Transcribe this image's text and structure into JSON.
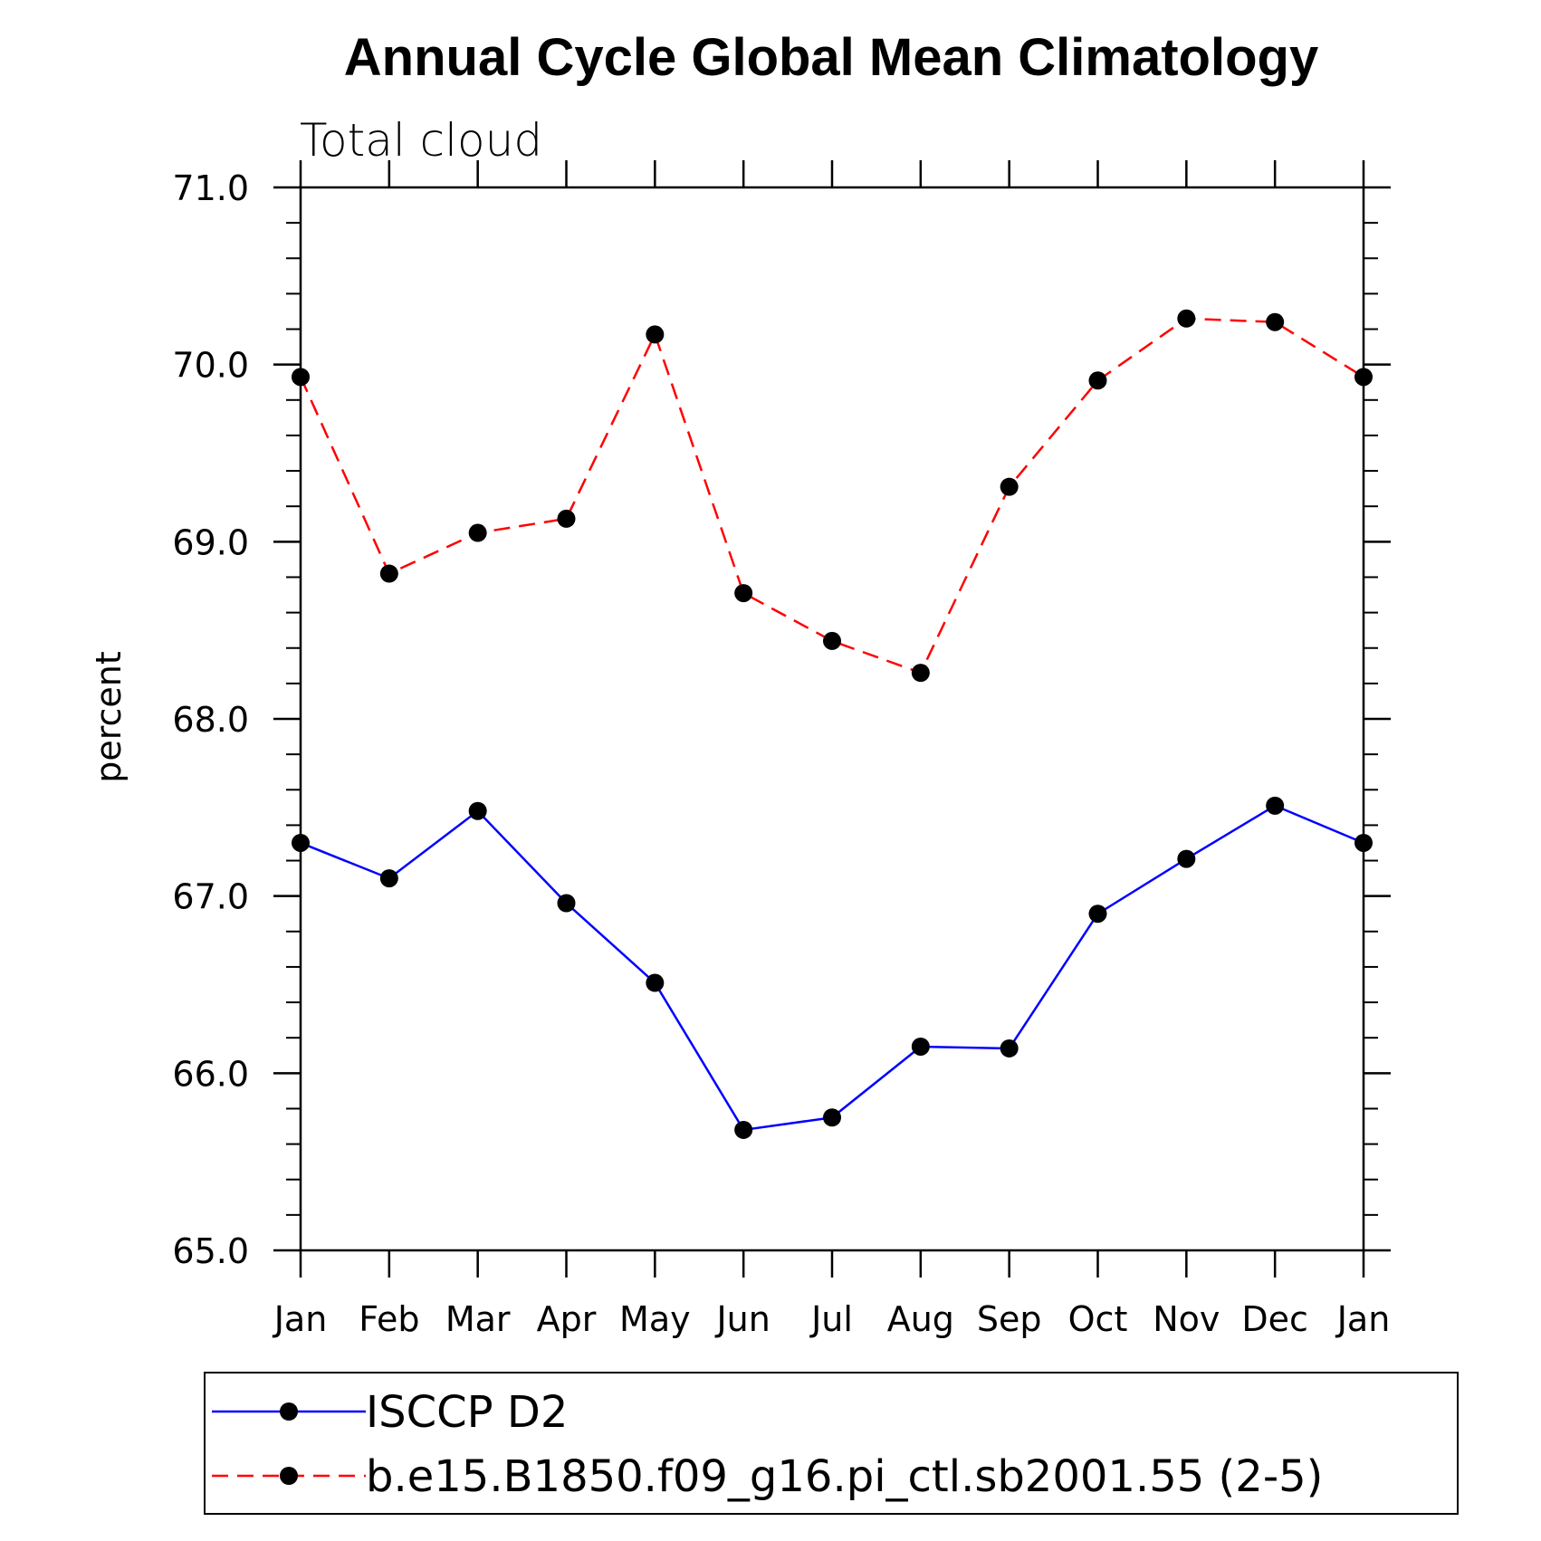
{
  "chart_data": {
    "type": "line",
    "title": "Annual Cycle Global Mean Climatology",
    "subtitle": "Total cloud",
    "xlabel": "",
    "ylabel": "percent",
    "categories": [
      "Jan",
      "Feb",
      "Mar",
      "Apr",
      "May",
      "Jun",
      "Jul",
      "Aug",
      "Sep",
      "Oct",
      "Nov",
      "Dec",
      "Jan"
    ],
    "ylim": [
      65.0,
      71.0
    ],
    "yticks": [
      "65.0",
      "66.0",
      "67.0",
      "68.0",
      "69.0",
      "70.0",
      "71.0"
    ],
    "grid": false,
    "legend_position": "bottom",
    "series": [
      {
        "name": "ISCCP D2",
        "color": "#0000ff",
        "line_style": "solid",
        "marker": "filled-circle",
        "values": [
          67.3,
          67.1,
          67.48,
          66.96,
          66.51,
          65.68,
          65.75,
          66.15,
          66.14,
          66.9,
          67.21,
          67.51,
          67.3
        ]
      },
      {
        "name": "b.e15.B1850.f09_g16.pi_ctl.sb2001.55 (2-5)",
        "color": "#ff0000",
        "line_style": "dashed",
        "marker": "filled-circle",
        "values": [
          69.93,
          68.82,
          69.05,
          69.13,
          70.17,
          68.71,
          68.44,
          68.26,
          69.31,
          69.91,
          70.26,
          70.24,
          69.93
        ]
      }
    ]
  }
}
